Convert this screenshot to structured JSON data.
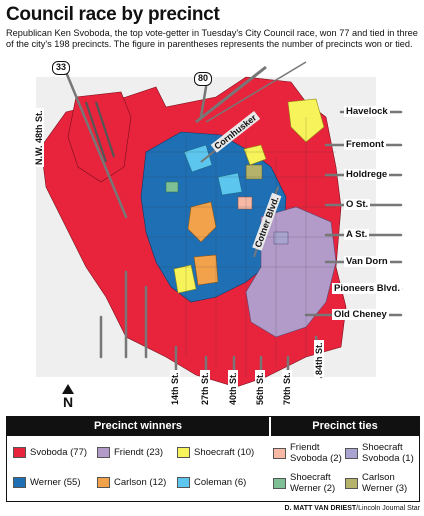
{
  "title": "Council race by precinct",
  "subtitle": "Republican Ken Svoboda, the top vote-getter in Tuesday's City Council race, won 77 and tied in three of the city's 198 precincts. The figure in parentheses represents the number of precincts won or tied.",
  "colors": {
    "svoboda": "#e8243c",
    "werner": "#1f6fb5",
    "friendt": "#b29bc9",
    "carlson": "#f2a24a",
    "shoecraft": "#f7f35a",
    "coleman": "#5cc6ee",
    "tie_friendt_svoboda": "#f7b8a6",
    "tie_shoecraft_svoboda": "#a9a4cf",
    "tie_shoecraft_werner": "#7fbf95",
    "tie_carlson_werner": "#b5b36b"
  },
  "map": {
    "highways": [
      "33",
      "80"
    ],
    "streets": {
      "havelock": "Havelock",
      "fremont": "Fremont",
      "holdrege": "Holdrege",
      "o_st": "O St.",
      "a_st": "A St.",
      "van_dorn": "Van Dorn",
      "pioneers": "Pioneers Blvd.",
      "old_cheney": "Old Cheney",
      "nw_48th": "N.W. 48th St.",
      "st_14th": "14th St.",
      "st_27th": "27th St.",
      "st_40th": "40th St.",
      "st_56th": "56th St.",
      "st_70th": "70th St.",
      "st_84th": "84th St.",
      "cornhusker": "Cornhusker",
      "cotner": "Cotner Blvd."
    },
    "north": "N"
  },
  "legend": {
    "winners_heading": "Precinct winners",
    "ties_heading": "Precinct ties",
    "winners": [
      {
        "label": "Svoboda (77)"
      },
      {
        "label": "Friendt (23)"
      },
      {
        "label": "Shoecraft (10)"
      },
      {
        "label": "Werner (55)"
      },
      {
        "label": "Carlson (12)"
      },
      {
        "label": "Coleman (6)"
      }
    ],
    "ties": [
      {
        "line1": "Friendt",
        "line2": "Svoboda (2)"
      },
      {
        "line1": "Shoecraft",
        "line2": "Svoboda (1)"
      },
      {
        "line1": "Shoecraft",
        "line2": "Werner (2)"
      },
      {
        "line1": "Carlson",
        "line2": "Werner (3)"
      }
    ]
  },
  "credit": {
    "author": "D. MATT VAN DRIEST",
    "outlet": "/Lincoln Journal Star"
  }
}
